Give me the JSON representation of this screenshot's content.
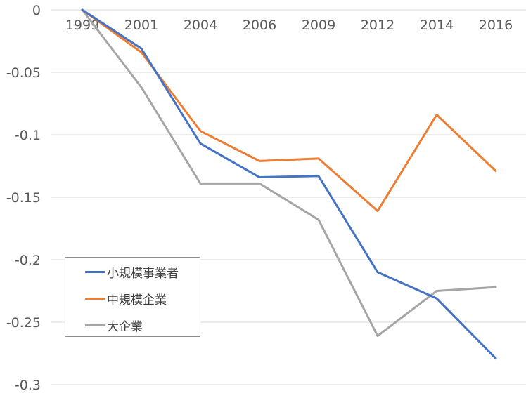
{
  "chart_data": {
    "type": "line",
    "title": "",
    "xlabel": "",
    "ylabel": "",
    "categories": [
      "1999",
      "2001",
      "2004",
      "2006",
      "2009",
      "2012",
      "2014",
      "2016"
    ],
    "y_ticks": [
      "0",
      "-0.05",
      "-0.1",
      "-0.15",
      "-0.2",
      "-0.25",
      "-0.3"
    ],
    "ylim": [
      -0.3,
      0
    ],
    "grid": true,
    "legend_position": "inside-lower-left",
    "series": [
      {
        "name": "小規模事業者",
        "color": "#4472C4",
        "values": [
          0,
          -0.031,
          -0.107,
          -0.134,
          -0.133,
          -0.21,
          -0.231,
          -0.279
        ]
      },
      {
        "name": "中規模企業",
        "color": "#ED7D31",
        "values": [
          0,
          -0.034,
          -0.097,
          -0.121,
          -0.119,
          -0.161,
          -0.084,
          -0.129
        ]
      },
      {
        "name": "大企業",
        "color": "#A5A5A5",
        "values": [
          0,
          -0.062,
          -0.139,
          -0.139,
          -0.168,
          -0.261,
          -0.225,
          -0.222
        ]
      }
    ]
  },
  "legend": {
    "items": [
      {
        "label": "小規模事業者",
        "color": "#4472C4"
      },
      {
        "label": "中規模企業",
        "color": "#ED7D31"
      },
      {
        "label": "大企業",
        "color": "#A5A5A5"
      }
    ]
  }
}
